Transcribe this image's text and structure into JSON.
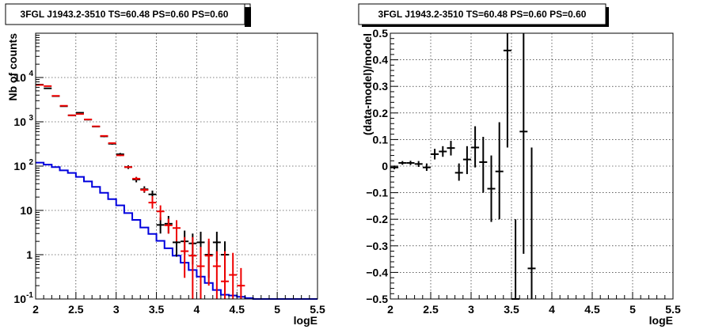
{
  "chart_data": [
    {
      "type": "scatter",
      "title": "3FGL J1943.2-3510 TS=60.48 PS=0.60 PS=0.60",
      "xlabel": "logE",
      "ylabel": "Nb of counts",
      "xlim": [
        2,
        5.5
      ],
      "ylim": [
        0.1,
        100000
      ],
      "yscale": "log",
      "grid": true,
      "x_ticks": [
        "2",
        "2.5",
        "3",
        "3.5",
        "4",
        "4.5",
        "5",
        "5.5"
      ],
      "y_ticks": [
        "10^-1",
        "1",
        "10",
        "10^2",
        "10^3",
        "10^4"
      ],
      "series": [
        {
          "color": "#000000",
          "style": "errorbar",
          "points": [
            {
              "x": 2.05,
              "y": 6900,
              "ylo": 6800,
              "yhi": 7000
            },
            {
              "x": 2.15,
              "y": 5700,
              "ylo": 5600,
              "yhi": 5800
            },
            {
              "x": 2.25,
              "y": 3800,
              "ylo": 3700,
              "yhi": 3900
            },
            {
              "x": 2.35,
              "y": 2250,
              "ylo": 2200,
              "yhi": 2300
            },
            {
              "x": 2.45,
              "y": 1400,
              "ylo": 1350,
              "yhi": 1450
            },
            {
              "x": 2.55,
              "y": 1600,
              "ylo": 1550,
              "yhi": 1650
            },
            {
              "x": 2.65,
              "y": 1120,
              "ylo": 1080,
              "yhi": 1160
            },
            {
              "x": 2.75,
              "y": 780,
              "ylo": 750,
              "yhi": 810
            },
            {
              "x": 2.85,
              "y": 470,
              "ylo": 450,
              "yhi": 490
            },
            {
              "x": 2.95,
              "y": 320,
              "ylo": 305,
              "yhi": 335
            },
            {
              "x": 3.05,
              "y": 185,
              "ylo": 172,
              "yhi": 198
            },
            {
              "x": 3.15,
              "y": 95,
              "ylo": 86,
              "yhi": 104
            },
            {
              "x": 3.25,
              "y": 50,
              "ylo": 43,
              "yhi": 57
            },
            {
              "x": 3.35,
              "y": 30,
              "ylo": 25,
              "yhi": 35
            },
            {
              "x": 3.45,
              "y": 23,
              "ylo": 18,
              "yhi": 28
            },
            {
              "x": 3.55,
              "y": 4.7,
              "ylo": 3,
              "yhi": 7
            },
            {
              "x": 3.65,
              "y": 5.0,
              "ylo": 3,
              "yhi": 7.5
            },
            {
              "x": 3.75,
              "y": 1.9,
              "ylo": 0.9,
              "yhi": 3.2
            },
            {
              "x": 3.85,
              "y": 2.0,
              "ylo": 1,
              "yhi": 3.5
            },
            {
              "x": 3.95,
              "y": 1.8,
              "ylo": 0.6,
              "yhi": 3
            },
            {
              "x": 4.05,
              "y": 1.9,
              "ylo": 0.6,
              "yhi": 3.3
            },
            {
              "x": 4.15,
              "y": 1.0,
              "ylo": 0.3,
              "yhi": 2
            },
            {
              "x": 4.25,
              "y": 1.9,
              "ylo": 0.7,
              "yhi": 3.3
            },
            {
              "x": 4.35,
              "y": 1.0,
              "ylo": 0.3,
              "yhi": 2
            }
          ]
        },
        {
          "color": "#ee0000",
          "style": "errorbar",
          "points": [
            {
              "x": 2.05,
              "y": 6800,
              "ylo": 6700,
              "yhi": 6900
            },
            {
              "x": 2.15,
              "y": 6400,
              "ylo": 6300,
              "yhi": 6500
            },
            {
              "x": 2.25,
              "y": 3850,
              "ylo": 3800,
              "yhi": 3900
            },
            {
              "x": 2.35,
              "y": 2300,
              "ylo": 2250,
              "yhi": 2350
            },
            {
              "x": 2.45,
              "y": 1400,
              "ylo": 1360,
              "yhi": 1440
            },
            {
              "x": 2.55,
              "y": 1500,
              "ylo": 1460,
              "yhi": 1540
            },
            {
              "x": 2.65,
              "y": 1130,
              "ylo": 1100,
              "yhi": 1160
            },
            {
              "x": 2.75,
              "y": 790,
              "ylo": 770,
              "yhi": 810
            },
            {
              "x": 2.85,
              "y": 480,
              "ylo": 465,
              "yhi": 495
            },
            {
              "x": 2.95,
              "y": 330,
              "ylo": 320,
              "yhi": 340
            },
            {
              "x": 3.05,
              "y": 175,
              "ylo": 168,
              "yhi": 182
            },
            {
              "x": 3.15,
              "y": 95,
              "ylo": 90,
              "yhi": 100
            },
            {
              "x": 3.25,
              "y": 52,
              "ylo": 48,
              "yhi": 56
            },
            {
              "x": 3.35,
              "y": 29,
              "ylo": 26,
              "yhi": 32
            },
            {
              "x": 3.45,
              "y": 15,
              "ylo": 11,
              "yhi": 21
            },
            {
              "x": 3.55,
              "y": 9.5,
              "ylo": 6,
              "yhi": 13
            },
            {
              "x": 3.65,
              "y": 4.6,
              "ylo": 3,
              "yhi": 6.5
            },
            {
              "x": 3.75,
              "y": 4.0,
              "ylo": 2,
              "yhi": 6
            },
            {
              "x": 3.85,
              "y": 1.2,
              "ylo": 0.3,
              "yhi": 2.5
            },
            {
              "x": 3.95,
              "y": 0.95,
              "ylo": 0.1,
              "yhi": 2.5
            },
            {
              "x": 4.05,
              "y": 0.55,
              "ylo": 0.1,
              "yhi": 1.5
            },
            {
              "x": 4.15,
              "y": 0.95,
              "ylo": 0.2,
              "yhi": 2.3
            },
            {
              "x": 4.25,
              "y": 0.55,
              "ylo": 0.1,
              "yhi": 1.2
            },
            {
              "x": 4.35,
              "y": 0.25,
              "ylo": 0.1,
              "yhi": 1.2
            },
            {
              "x": 4.45,
              "y": 0.35,
              "ylo": 0.1,
              "yhi": 1.1
            },
            {
              "x": 4.55,
              "y": 0.2,
              "ylo": 0.1,
              "yhi": 0.5
            }
          ]
        },
        {
          "color": "#0000dd",
          "style": "step",
          "edges": [
            2.0,
            2.1,
            2.2,
            2.3,
            2.4,
            2.5,
            2.6,
            2.7,
            2.8,
            2.9,
            3.0,
            3.1,
            3.2,
            3.3,
            3.4,
            3.5,
            3.6,
            3.7,
            3.8,
            3.9,
            4.0,
            4.1,
            4.2,
            4.3,
            4.4,
            4.5,
            4.6,
            4.7,
            5.5
          ],
          "values": [
            120,
            108,
            95,
            80,
            70,
            57,
            45,
            34,
            25,
            18,
            13,
            8.7,
            6.1,
            4.1,
            2.95,
            2.05,
            1.4,
            0.95,
            0.66,
            0.45,
            0.32,
            0.23,
            0.16,
            0.125,
            0.12,
            0.112,
            0.105,
            0.1
          ]
        }
      ]
    },
    {
      "type": "scatter",
      "title": "3FGL J1943.2-3510 TS=60.48 PS=0.60 PS=0.60",
      "xlabel": "logE",
      "ylabel": "(data-model)/model",
      "xlim": [
        2,
        5.5
      ],
      "ylim": [
        -0.5,
        0.5
      ],
      "grid": true,
      "x_ticks": [
        "2",
        "2.5",
        "3",
        "3.5",
        "4",
        "4.5",
        "5",
        "5.5"
      ],
      "y_ticks": [
        "−0.5",
        "−0.4",
        "−0.3",
        "−0.2",
        "−0.1",
        "0",
        "0.1",
        "0.2",
        "0.3",
        "0.4",
        "0.5"
      ],
      "series": [
        {
          "color": "#000000",
          "style": "errorbar",
          "points": [
            {
              "x": 2.05,
              "y": -0.005,
              "ylo": -0.012,
              "yhi": 0.002
            },
            {
              "x": 2.15,
              "y": 0.012,
              "ylo": 0.005,
              "yhi": 0.019
            },
            {
              "x": 2.25,
              "y": 0.012,
              "ylo": 0.004,
              "yhi": 0.02
            },
            {
              "x": 2.35,
              "y": 0.008,
              "ylo": -0.003,
              "yhi": 0.019
            },
            {
              "x": 2.45,
              "y": -0.005,
              "ylo": -0.018,
              "yhi": 0.01
            },
            {
              "x": 2.55,
              "y": 0.045,
              "ylo": 0.025,
              "yhi": 0.065
            },
            {
              "x": 2.65,
              "y": 0.055,
              "ylo": 0.035,
              "yhi": 0.075
            },
            {
              "x": 2.75,
              "y": 0.068,
              "ylo": 0.04,
              "yhi": 0.095
            },
            {
              "x": 2.85,
              "y": -0.025,
              "ylo": -0.055,
              "yhi": 0.01
            },
            {
              "x": 2.95,
              "y": 0.025,
              "ylo": -0.03,
              "yhi": 0.075
            },
            {
              "x": 3.05,
              "y": 0.07,
              "ylo": -0.005,
              "yhi": 0.15
            },
            {
              "x": 3.15,
              "y": 0.015,
              "ylo": -0.1,
              "yhi": 0.11
            },
            {
              "x": 3.25,
              "y": -0.085,
              "ylo": -0.21,
              "yhi": 0.04
            },
            {
              "x": 3.35,
              "y": -0.02,
              "ylo": -0.2,
              "yhi": 0.165
            },
            {
              "x": 3.45,
              "y": 0.435,
              "ylo": 0.07,
              "yhi": 0.5
            },
            {
              "x": 3.55,
              "y": -0.5,
              "ylo": -0.5,
              "yhi": -0.2
            },
            {
              "x": 3.65,
              "y": 0.13,
              "ylo": -0.33,
              "yhi": 0.5
            },
            {
              "x": 3.75,
              "y": -0.385,
              "ylo": -0.5,
              "yhi": 0.07
            }
          ]
        }
      ]
    }
  ]
}
